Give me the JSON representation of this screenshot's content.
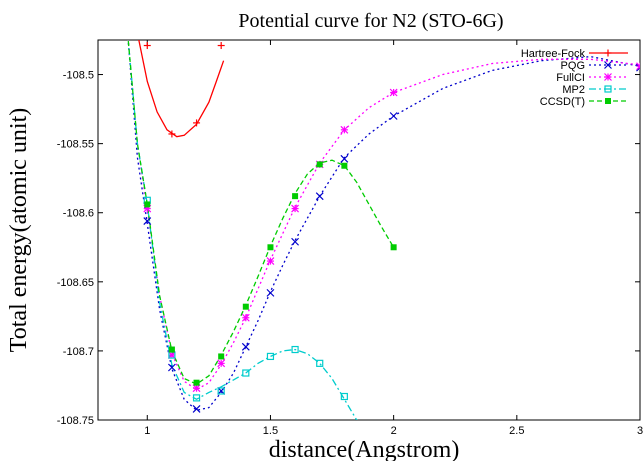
{
  "chart_data": {
    "type": "line",
    "title": "Potential curve for N2 (STO-6G)",
    "xlabel": "distance(Angstrom)",
    "ylabel": "Total energy(atomic unit)",
    "xlim": [
      0.8,
      3.0
    ],
    "ylim": [
      -108.75,
      -108.475
    ],
    "xticks": [
      1,
      1.5,
      2,
      2.5,
      3
    ],
    "xtick_labels": [
      "1",
      "1.5",
      "2",
      "2.5",
      "3"
    ],
    "yticks": [
      -108.5,
      -108.55,
      -108.6,
      -108.65,
      -108.7,
      -108.75
    ],
    "ytick_labels": [
      "-108.5",
      "-108.55",
      "-108.6",
      "-108.65",
      "-108.7",
      "-108.75"
    ],
    "grid": false,
    "legend_position": "top-right",
    "series": [
      {
        "name": "Hartree-Fock",
        "color": "#ff0000",
        "marker": "plus",
        "dash": "solid",
        "curve_x": [
          0.92,
          0.96,
          1.0,
          1.04,
          1.08,
          1.12,
          1.15,
          1.2,
          1.25,
          1.28,
          1.31
        ],
        "curve_y": [
          -108.42,
          -108.47,
          -108.505,
          -108.527,
          -108.54,
          -108.545,
          -108.544,
          -108.536,
          -108.52,
          -108.505,
          -108.49
        ],
        "points_x": [
          1.0,
          1.1,
          1.2,
          1.3
        ],
        "points_y": [
          -108.479,
          -108.543,
          -108.535,
          -108.479
        ]
      },
      {
        "name": "PQG",
        "color": "#0000cc",
        "marker": "x",
        "dash": "dot",
        "curve_x": [
          0.92,
          0.96,
          1.0,
          1.05,
          1.1,
          1.15,
          1.2,
          1.25,
          1.3,
          1.35,
          1.4,
          1.45,
          1.5,
          1.55,
          1.6,
          1.7,
          1.8,
          1.9,
          2.0,
          2.2,
          2.4,
          2.6,
          2.8,
          3.0
        ],
        "curve_y": [
          -108.47,
          -108.56,
          -108.608,
          -108.67,
          -108.713,
          -108.735,
          -108.743,
          -108.741,
          -108.73,
          -108.716,
          -108.697,
          -108.678,
          -108.657,
          -108.638,
          -108.62,
          -108.588,
          -108.56,
          -108.543,
          -108.53,
          -108.51,
          -108.497,
          -108.49,
          -108.487,
          -108.494
        ],
        "points_x": [
          1.0,
          1.1,
          1.2,
          1.3,
          1.4,
          1.5,
          1.6,
          1.7,
          1.8,
          2.0,
          3.0
        ],
        "points_y": [
          -108.606,
          -108.712,
          -108.742,
          -108.729,
          -108.697,
          -108.658,
          -108.621,
          -108.588,
          -108.561,
          -108.53,
          -108.495
        ]
      },
      {
        "name": "FullCI",
        "color": "#ff00ff",
        "marker": "star",
        "dash": "dot",
        "curve_x": [
          0.92,
          0.96,
          1.0,
          1.05,
          1.1,
          1.15,
          1.2,
          1.25,
          1.3,
          1.35,
          1.4,
          1.45,
          1.5,
          1.6,
          1.7,
          1.8,
          1.9,
          2.0,
          2.2,
          2.4,
          2.6,
          2.8,
          3.0
        ],
        "curve_y": [
          -108.47,
          -108.55,
          -108.598,
          -108.66,
          -108.702,
          -108.722,
          -108.728,
          -108.723,
          -108.71,
          -108.694,
          -108.676,
          -108.655,
          -108.634,
          -108.596,
          -108.564,
          -108.54,
          -108.524,
          -108.513,
          -108.5,
          -108.492,
          -108.489,
          -108.489,
          -108.493
        ],
        "points_x": [
          1.0,
          1.1,
          1.2,
          1.3,
          1.4,
          1.5,
          1.6,
          1.7,
          1.8,
          2.0,
          3.0
        ],
        "points_y": [
          -108.597,
          -108.703,
          -108.727,
          -108.709,
          -108.676,
          -108.635,
          -108.597,
          -108.565,
          -108.54,
          -108.513,
          -108.494
        ]
      },
      {
        "name": "MP2",
        "color": "#00cccc",
        "marker": "square-open",
        "dash": "dashdot",
        "curve_x": [
          0.92,
          0.96,
          1.0,
          1.05,
          1.1,
          1.15,
          1.2,
          1.25,
          1.3,
          1.35,
          1.4,
          1.45,
          1.5,
          1.55,
          1.6,
          1.65,
          1.7,
          1.75,
          1.8,
          1.85,
          1.88
        ],
        "curve_y": [
          -108.47,
          -108.55,
          -108.594,
          -108.665,
          -108.71,
          -108.73,
          -108.735,
          -108.73,
          -108.726,
          -108.721,
          -108.716,
          -108.709,
          -108.704,
          -108.7,
          -108.699,
          -108.702,
          -108.709,
          -108.72,
          -108.735,
          -108.75,
          -108.76
        ],
        "points_x": [
          1.0,
          1.1,
          1.2,
          1.3,
          1.4,
          1.5,
          1.6,
          1.7,
          1.8
        ],
        "points_y": [
          -108.591,
          -108.703,
          -108.734,
          -108.729,
          -108.716,
          -108.704,
          -108.699,
          -108.709,
          -108.733
        ]
      },
      {
        "name": "CCSD(T)",
        "color": "#00cc00",
        "marker": "square-filled",
        "dash": "dash",
        "curve_x": [
          0.92,
          0.96,
          1.0,
          1.05,
          1.1,
          1.15,
          1.2,
          1.25,
          1.3,
          1.35,
          1.4,
          1.45,
          1.5,
          1.55,
          1.6,
          1.65,
          1.7,
          1.75,
          1.8,
          1.85,
          1.9,
          1.95,
          2.0
        ],
        "curve_y": [
          -108.47,
          -108.55,
          -108.594,
          -108.66,
          -108.7,
          -108.72,
          -108.724,
          -108.718,
          -108.703,
          -108.686,
          -108.667,
          -108.646,
          -108.624,
          -108.604,
          -108.586,
          -108.572,
          -108.564,
          -108.562,
          -108.566,
          -108.578,
          -108.594,
          -108.61,
          -108.625
        ],
        "points_x": [
          1.0,
          1.1,
          1.2,
          1.3,
          1.4,
          1.5,
          1.6,
          1.7,
          1.8,
          2.0
        ],
        "points_y": [
          -108.594,
          -108.699,
          -108.723,
          -108.704,
          -108.668,
          -108.625,
          -108.588,
          -108.565,
          -108.566,
          -108.625
        ]
      }
    ]
  }
}
